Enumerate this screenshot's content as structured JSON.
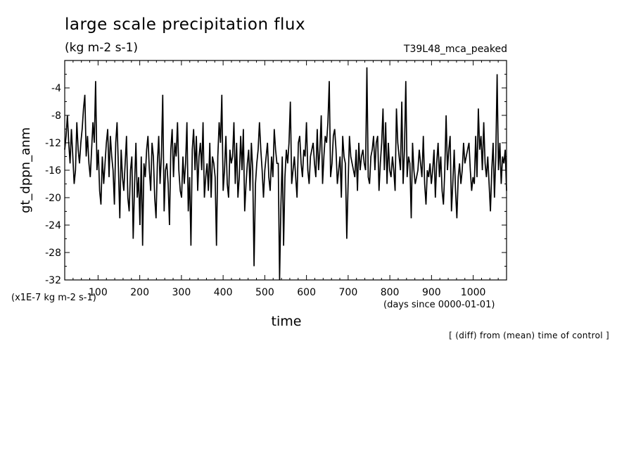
{
  "title": "large scale precipitation flux",
  "units": "(kg m-2 s-1)",
  "experiment": "T39L48_mca_peaked",
  "scale_note": "(x1E-7 kg m-2 s-1)",
  "x_units_note": "(days since 0000-01-01)",
  "footer": "[ (diff) from (mean) time of control ]",
  "chart_data": {
    "type": "line",
    "title": "large scale precipitation flux",
    "xlabel": "time",
    "ylabel": "gt_dppn_anm",
    "xlim": [
      20,
      1080
    ],
    "ylim": [
      -32,
      0
    ],
    "x_ticks": [
      100,
      200,
      300,
      400,
      500,
      600,
      700,
      800,
      900,
      1000
    ],
    "y_ticks": [
      -4,
      -8,
      -12,
      -16,
      -20,
      -24,
      -28,
      -32
    ],
    "grid": false,
    "legend": "none",
    "line_color": "#000000",
    "x_step_days": 4,
    "series": [
      {
        "values": [
          -13,
          -11,
          -8,
          -12,
          -15,
          -10,
          -14,
          -18,
          -16,
          -9,
          -13,
          -15,
          -12,
          -10,
          -7,
          -5,
          -14,
          -11,
          -15,
          -17,
          -13,
          -9,
          -12,
          -3,
          -16,
          -13,
          -19,
          -21,
          -14,
          -18,
          -15,
          -12,
          -10,
          -17,
          -11,
          -14,
          -16,
          -21,
          -12,
          -9,
          -16,
          -23,
          -13,
          -17,
          -19,
          -15,
          -11,
          -20,
          -22,
          -16,
          -14,
          -26,
          -18,
          -12,
          -20,
          -17,
          -24,
          -14,
          -27,
          -15,
          -17,
          -13,
          -11,
          -16,
          -19,
          -12,
          -14,
          -20,
          -23,
          -15,
          -11,
          -18,
          -14,
          -5,
          -22,
          -16,
          -15,
          -18,
          -24,
          -13,
          -10,
          -17,
          -12,
          -14,
          -9,
          -16,
          -19,
          -20,
          -14,
          -18,
          -15,
          -9,
          -22,
          -17,
          -27,
          -13,
          -10,
          -16,
          -11,
          -19,
          -14,
          -12,
          -16,
          -9,
          -20,
          -17,
          -15,
          -19,
          -12,
          -20,
          -14,
          -15,
          -17,
          -27,
          -14,
          -9,
          -12,
          -5,
          -19,
          -16,
          -11,
          -18,
          -20,
          -13,
          -15,
          -14,
          -9,
          -18,
          -12,
          -20,
          -17,
          -11,
          -16,
          -10,
          -22,
          -18,
          -15,
          -13,
          -19,
          -12,
          -16,
          -30,
          -18,
          -15,
          -13,
          -9,
          -13,
          -16,
          -20,
          -16,
          -14,
          -12,
          -17,
          -19,
          -14,
          -17,
          -10,
          -13,
          -15,
          -15,
          -32,
          -21,
          -14,
          -27,
          -17,
          -13,
          -15,
          -12,
          -6,
          -18,
          -16,
          -14,
          -17,
          -20,
          -12,
          -11,
          -15,
          -17,
          -13,
          -14,
          -9,
          -16,
          -18,
          -14,
          -13,
          -12,
          -15,
          -17,
          -10,
          -16,
          -13,
          -8,
          -18,
          -14,
          -11,
          -12,
          -9,
          -3,
          -17,
          -15,
          -11,
          -10,
          -13,
          -18,
          -16,
          -14,
          -20,
          -11,
          -14,
          -15,
          -26,
          -18,
          -11,
          -14,
          -15,
          -16,
          -17,
          -13,
          -19,
          -12,
          -16,
          -14,
          -13,
          -15,
          -16,
          -1,
          -17,
          -18,
          -14,
          -13,
          -11,
          -16,
          -12,
          -11,
          -19,
          -15,
          -12,
          -7,
          -16,
          -9,
          -18,
          -12,
          -16,
          -17,
          -14,
          -16,
          -19,
          -7,
          -12,
          -14,
          -16,
          -6,
          -18,
          -13,
          -3,
          -17,
          -14,
          -15,
          -23,
          -12,
          -16,
          -18,
          -17,
          -16,
          -13,
          -15,
          -17,
          -11,
          -18,
          -21,
          -16,
          -17,
          -15,
          -18,
          -16,
          -13,
          -20,
          -15,
          -12,
          -17,
          -14,
          -19,
          -21,
          -16,
          -8,
          -16,
          -13,
          -11,
          -22,
          -18,
          -13,
          -19,
          -23,
          -17,
          -15,
          -18,
          -16,
          -12,
          -15,
          -14,
          -13,
          -12,
          -16,
          -19,
          -17,
          -18,
          -11,
          -17,
          -7,
          -13,
          -11,
          -16,
          -9,
          -15,
          -17,
          -14,
          -18,
          -22,
          -16,
          -12,
          -20,
          -14,
          -2,
          -16,
          -12,
          -18,
          -14,
          -15,
          -13,
          -19
        ]
      }
    ]
  }
}
